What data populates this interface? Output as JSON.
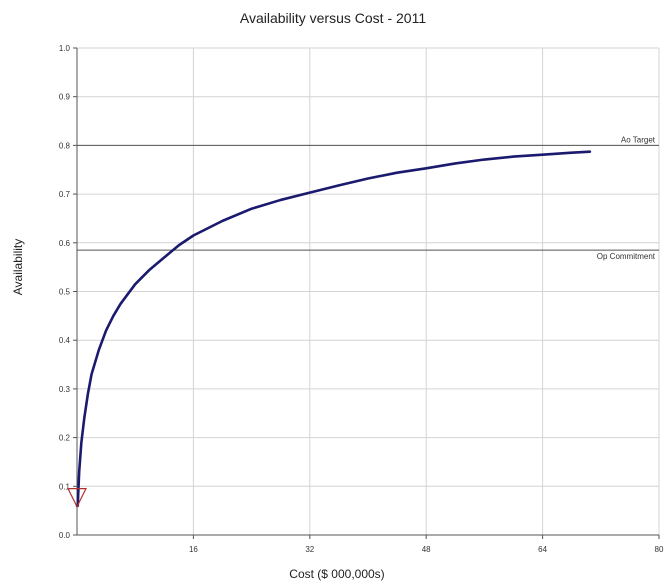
{
  "chart_data": {
    "type": "line",
    "title": "Availability versus Cost - 2011",
    "xlabel": "Cost ($ 000,000s)",
    "ylabel": "Availability",
    "xlim": [
      0,
      80
    ],
    "ylim": [
      0,
      1.0
    ],
    "x_ticks": [
      16,
      32,
      48,
      64,
      80
    ],
    "y_ticks": [
      "0.0",
      "0.1",
      "0.2",
      "0.3",
      "0.4",
      "0.5",
      "0.6",
      "0.7",
      "0.8",
      "0.9",
      "1.0"
    ],
    "grid": true,
    "series": [
      {
        "color": "#1a1a6e",
        "x": [
          0.1,
          0.3,
          0.6,
          1,
          1.5,
          2,
          3,
          4,
          5,
          6,
          8,
          10,
          12,
          14,
          16,
          20,
          24,
          28,
          32,
          36,
          40,
          44,
          48,
          52,
          56,
          60,
          64,
          68,
          70.5
        ],
        "y": [
          0.06,
          0.13,
          0.19,
          0.24,
          0.29,
          0.33,
          0.38,
          0.42,
          0.45,
          0.475,
          0.515,
          0.545,
          0.57,
          0.595,
          0.615,
          0.645,
          0.67,
          0.688,
          0.703,
          0.718,
          0.732,
          0.744,
          0.753,
          0.763,
          0.771,
          0.777,
          0.781,
          0.785,
          0.787
        ]
      }
    ],
    "reference_lines": [
      {
        "label": "Ao Target",
        "value": 0.8
      },
      {
        "label": "Op Commitment",
        "value": 0.585
      }
    ],
    "marker": {
      "shape": "triangle-down",
      "x": 0,
      "y": 0.05,
      "color": "#b03030"
    }
  }
}
